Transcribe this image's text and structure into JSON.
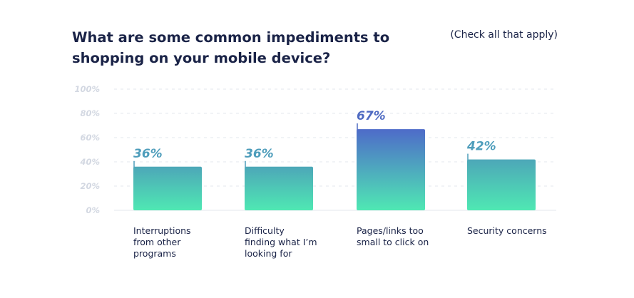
{
  "header": {
    "title": "What are some common impediments to shopping on your mobile device?",
    "note": "(Check all that apply)"
  },
  "colors": {
    "bar_top": "#4da7b8",
    "bar_top_highlight": "#4e6bc9",
    "bar_bottom": "#4fe8b3",
    "label_default": "#4e9dbb",
    "label_highlight": "#4f6bc2",
    "grid": "#e3e7ee",
    "text": "#1a2347"
  },
  "chart_data": {
    "type": "bar",
    "categories": [
      [
        "Interruptions",
        "from other",
        "programs"
      ],
      [
        "Difficulty",
        "finding what I’m",
        "looking for"
      ],
      [
        "Pages/links too",
        "small to click on"
      ],
      [
        "Security concerns"
      ]
    ],
    "values": [
      36,
      36,
      67,
      42
    ],
    "data_labels": [
      "36%",
      "36%",
      "67%",
      "42%"
    ],
    "highlight_index": 2,
    "ylim": [
      0,
      100
    ],
    "yticks": [
      "0%",
      "20%",
      "40%",
      "60%",
      "80%",
      "100%"
    ],
    "grid": true
  }
}
